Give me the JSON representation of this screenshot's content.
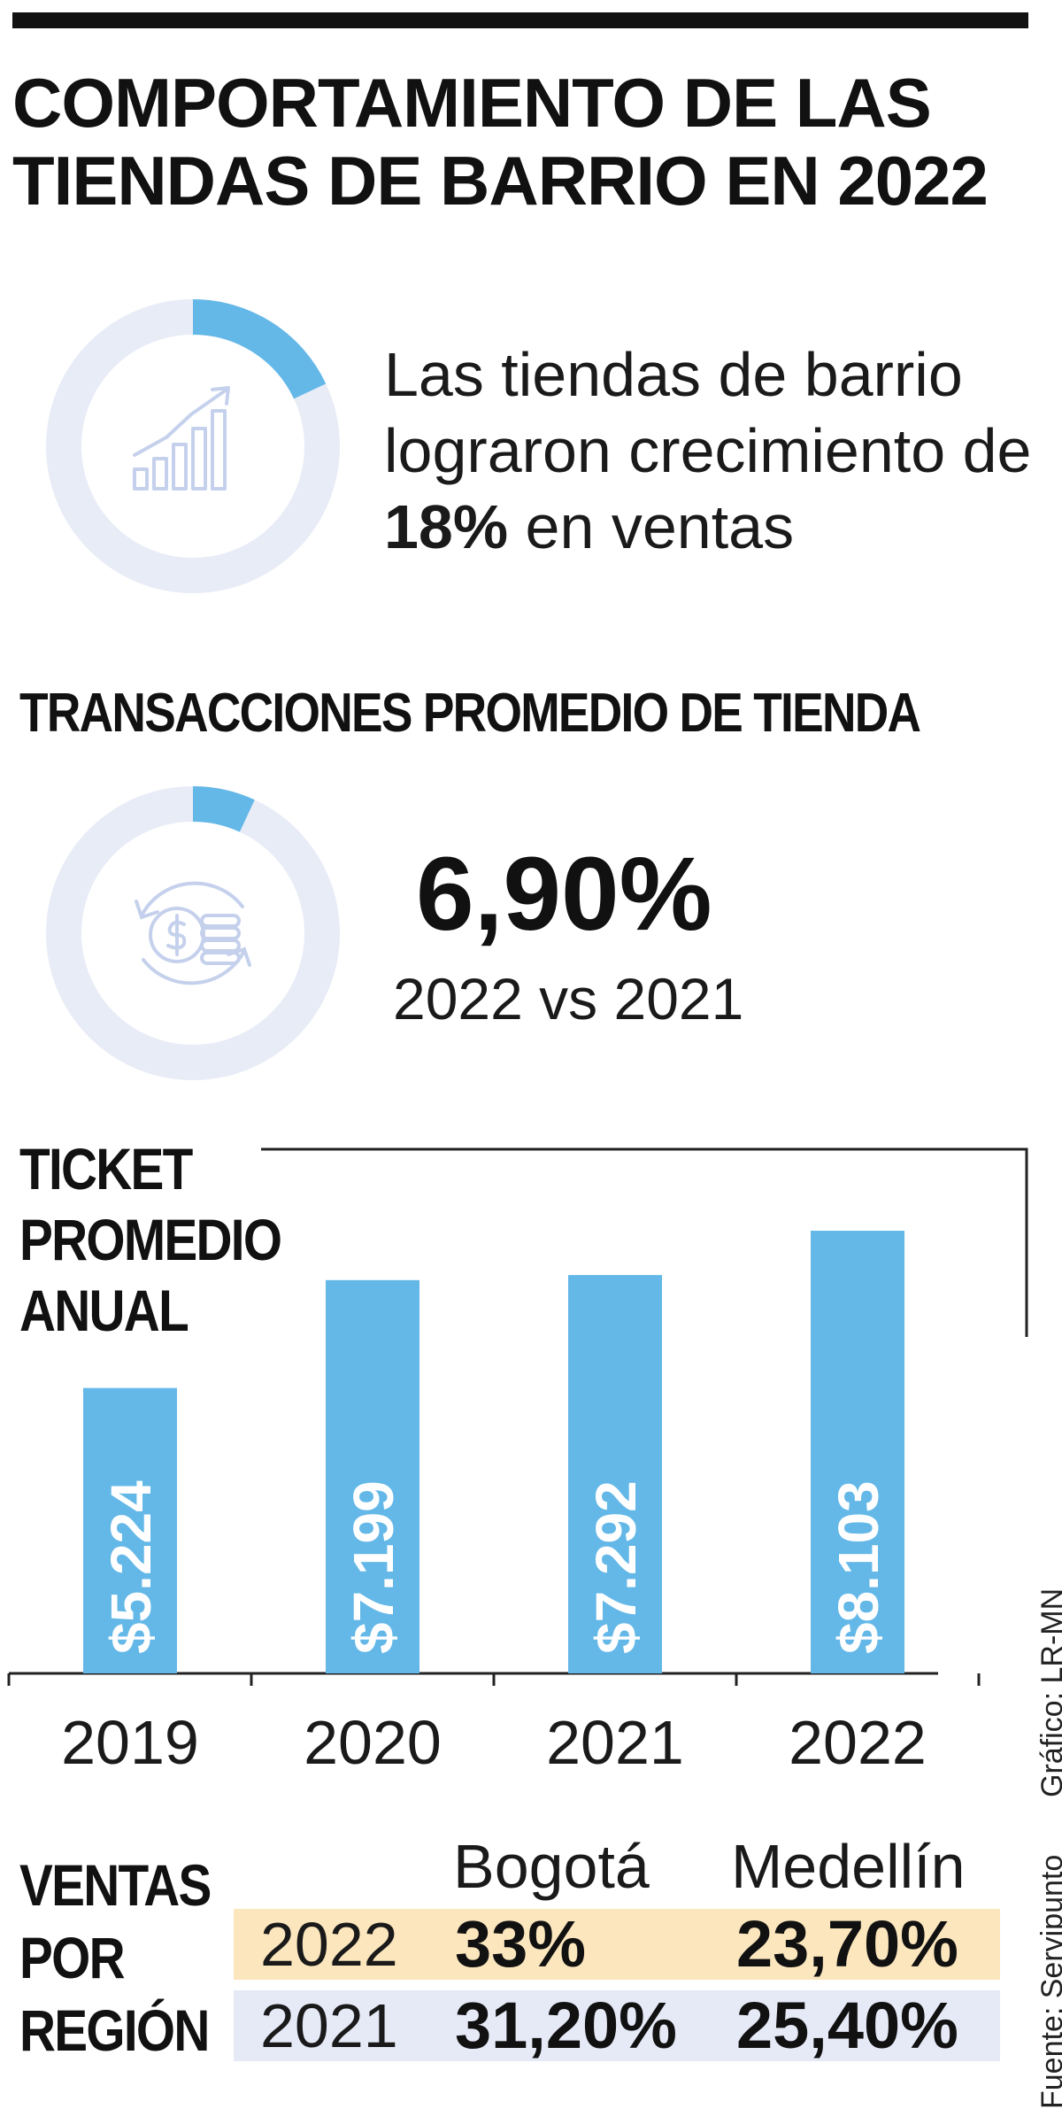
{
  "title": {
    "line1": "COMPORTAMIENTO DE LAS",
    "line2": "TIENDAS DE BARRIO EN 2022"
  },
  "growth": {
    "text_before": "Las tiendas de barrio lograron crecimiento de ",
    "value": "18%",
    "text_after": " en ventas",
    "percent": 18,
    "icon": "bar-growth-icon"
  },
  "transactions": {
    "heading": "TRANSACCIONES PROMEDIO DE TIENDA",
    "value": "6,90%",
    "comparison": "2022 vs 2021",
    "percent": 6.9,
    "icon": "coin-exchange-icon"
  },
  "colors": {
    "accent": "#64b8e8",
    "ring_track": "#e8ecf6",
    "icon_stroke": "#c5d1ec",
    "row_2022": "#fbe6bd",
    "row_2021": "#e6eaf7"
  },
  "chart_data": {
    "type": "bar",
    "title_lines": [
      "TICKET",
      "PROMEDIO",
      "ANUAL"
    ],
    "categories": [
      "2019",
      "2020",
      "2021",
      "2022"
    ],
    "values": [
      5224,
      7199,
      7292,
      8103
    ],
    "labels": [
      "$5.224",
      "$7.199",
      "$7.292",
      "$8.103"
    ],
    "xlabel": "",
    "ylabel": "",
    "ylim": [
      0,
      8500
    ],
    "grid": false
  },
  "regions": {
    "title_lines": [
      "VENTAS",
      "POR",
      "REGIÓN"
    ],
    "columns": [
      "Bogotá",
      "Medellín"
    ],
    "rows": [
      {
        "year": "2022",
        "values": [
          "33%",
          "23,70%"
        ]
      },
      {
        "year": "2021",
        "values": [
          "31,20%",
          "25,40%"
        ]
      }
    ]
  },
  "credits": {
    "graphic": "Gráfico: LR-MN",
    "source": "Fuente: Servipunto"
  }
}
